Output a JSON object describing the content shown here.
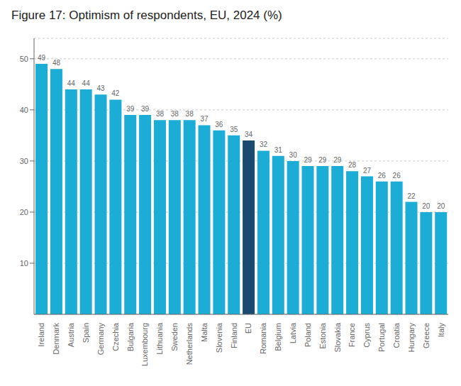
{
  "chart_data": {
    "type": "bar",
    "title": "Figure 17: Optimism of respondents, EU, 2024 (%)",
    "categories": [
      "Ireland",
      "Denmark",
      "Austria",
      "Spain",
      "Germany",
      "Czechia",
      "Bulgaria",
      "Luxembourg",
      "Lithuania",
      "Sweden",
      "Netherlands",
      "Malta",
      "Slovenia",
      "Finland",
      "EU",
      "Romania",
      "Belgium",
      "Latvia",
      "Poland",
      "Estonia",
      "Slovakia",
      "France",
      "Cyprus",
      "Portugal",
      "Croatia",
      "Hungary",
      "Greece",
      "Italy"
    ],
    "values": [
      49,
      48,
      44,
      44,
      43,
      42,
      39,
      39,
      38,
      38,
      38,
      37,
      36,
      35,
      34,
      32,
      31,
      30,
      29,
      29,
      29,
      28,
      27,
      26,
      26,
      22,
      20,
      20
    ],
    "colors": [
      "#1BADD6",
      "#1BADD6",
      "#1BADD6",
      "#1BADD6",
      "#1BADD6",
      "#1BADD6",
      "#1BADD6",
      "#1BADD6",
      "#1BADD6",
      "#1BADD6",
      "#1BADD6",
      "#1BADD6",
      "#1BADD6",
      "#1BADD6",
      "#1A4A6E",
      "#1BADD6",
      "#1BADD6",
      "#1BADD6",
      "#1BADD6",
      "#1BADD6",
      "#1BADD6",
      "#1BADD6",
      "#1BADD6",
      "#1BADD6",
      "#1BADD6",
      "#1BADD6",
      "#1BADD6",
      "#1BADD6"
    ],
    "ylim": [
      0,
      54
    ],
    "yticks": [
      10,
      20,
      30,
      40,
      50
    ],
    "grid": true,
    "data_labels": true
  }
}
